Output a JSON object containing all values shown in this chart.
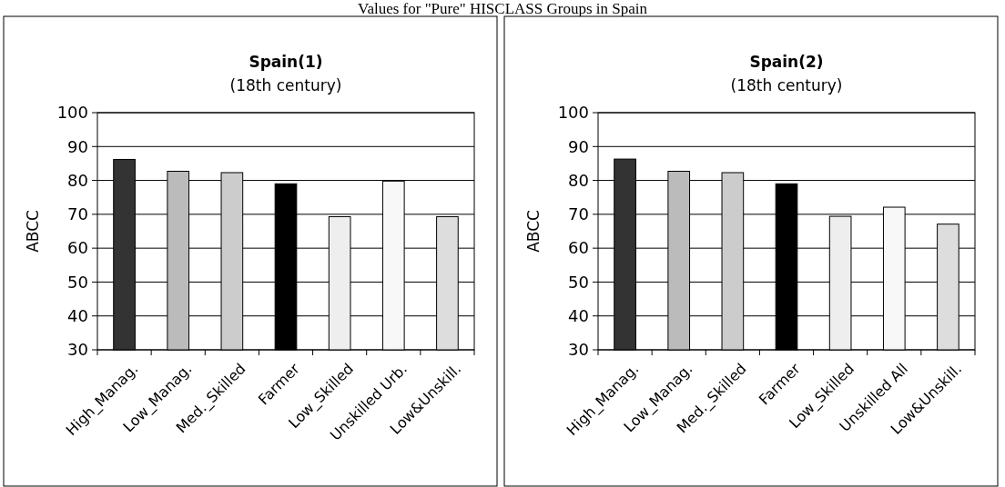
{
  "chart_data": [
    {
      "type": "bar",
      "title": "Spain(1)",
      "subtitle": "(18th century)",
      "ylabel": "ABCC",
      "annotations": [
        "Values for \"Pure\" HISCLASS Groups in Spain"
      ],
      "categories": [
        "High_Manag.",
        "Low_Manag.",
        "Med._Skilled",
        "Farmer",
        "Low_Skilled",
        "Unskilled Urb.",
        "Low&Unskill."
      ],
      "values": [
        86.2,
        82.7,
        82.3,
        79.0,
        69.3,
        79.8,
        69.3
      ],
      "colors": [
        "#333333",
        "#bbbbbb",
        "#cccccc",
        "#000000",
        "#eeeeee",
        "#f8f8f8",
        "#dddddd"
      ],
      "ylim": [
        30,
        100
      ],
      "yticks": [
        30,
        40,
        50,
        60,
        70,
        80,
        90,
        100
      ],
      "grid": "y"
    },
    {
      "type": "bar",
      "title": "Spain(2)",
      "subtitle": "(18th century)",
      "ylabel": "ABCC",
      "categories": [
        "High_Manag.",
        "Low_Manag.",
        "Med._Skilled",
        "Farmer",
        "Low_Skilled",
        "Unskilled All",
        "Low&Unskill."
      ],
      "values": [
        86.3,
        82.7,
        82.3,
        79.0,
        69.4,
        72.1,
        67.1
      ],
      "colors": [
        "#333333",
        "#bbbbbb",
        "#cccccc",
        "#000000",
        "#eeeeee",
        "#f8f8f8",
        "#dddddd"
      ],
      "ylim": [
        30,
        100
      ],
      "yticks": [
        30,
        40,
        50,
        60,
        70,
        80,
        90,
        100
      ],
      "grid": "y"
    }
  ]
}
